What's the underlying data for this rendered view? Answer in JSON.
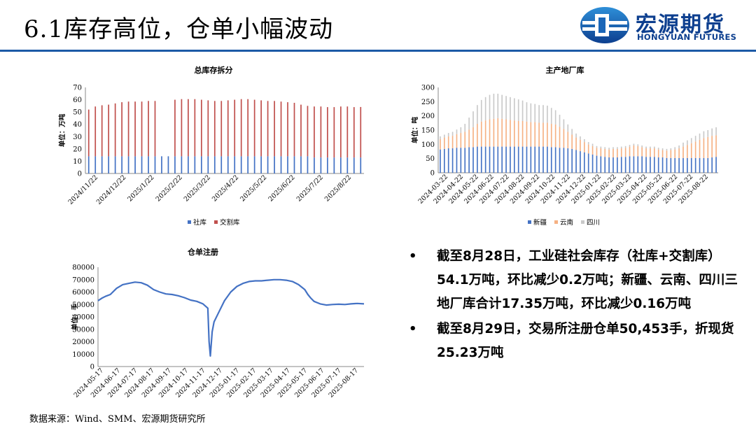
{
  "page_title": "6.1库存高位，仓单小幅波动",
  "logo": {
    "cn": "宏源期货",
    "en": "HONGYUAN FUTURES"
  },
  "bullets": [
    "截至8月28日，工业硅社会库存（社库+交割库）54.1万吨，环比减少0.2万吨；新疆、云南、四川三地厂库合计17.35万吨，环比减少0.16万吨",
    "截至8月29日，交易所注册仓单50,453手，折现货25.23万吨"
  ],
  "source_note": "数据来源：Wind、SMM、宏源期货研究所",
  "colors": {
    "blue": "#4472c4",
    "red": "#c0504d",
    "orange": "#f5b183",
    "gray": "#c9c9c9",
    "line": "#4472c4",
    "brand": "#1c5aa6"
  },
  "chart_data": [
    {
      "id": "total",
      "type": "bar",
      "stacked": true,
      "title": "总库存拆分",
      "ylabel": "单位：万吨",
      "ylim": [
        0,
        70
      ],
      "yticks": [
        0,
        10,
        20,
        30,
        40,
        50,
        60,
        70
      ],
      "xtick_labels": [
        "2024/11/22",
        "2024/12/22",
        "2025/1/22",
        "2025/2/22",
        "2025/3/22",
        "2025/4/22",
        "2025/5/22",
        "2025/6/22",
        "2025/7/22",
        "2025/8/22"
      ],
      "legend_position": "bottom",
      "series": [
        {
          "name": "社库",
          "color": "#4472c4",
          "values": [
            14,
            14,
            14,
            14,
            14,
            14,
            14,
            14,
            14,
            14,
            14,
            14,
            14,
            14,
            14,
            14,
            14,
            14,
            14,
            14,
            14,
            14,
            14,
            14,
            14,
            14,
            14,
            14,
            14,
            14,
            14,
            14,
            14,
            14,
            13,
            13,
            13,
            13,
            13,
            13,
            13,
            13
          ]
        },
        {
          "name": "交割库",
          "color": "#c0504d",
          "values": [
            38,
            40.5,
            41.5,
            42,
            43,
            44,
            44.5,
            44.5,
            44.5,
            45,
            45,
            0,
            0,
            46,
            46.5,
            46.5,
            46.5,
            46,
            45.5,
            45,
            45,
            45.5,
            46,
            46.5,
            46.5,
            46,
            45.5,
            45,
            45,
            44.5,
            44,
            43.5,
            42,
            41,
            41.5,
            41.5,
            41,
            41,
            41.5,
            41.5,
            41,
            41.1
          ]
        }
      ]
    },
    {
      "id": "factory",
      "type": "bar",
      "stacked": true,
      "title": "主产地厂库",
      "ylabel": "单位：吨",
      "ylim": [
        0,
        300
      ],
      "yticks": [
        0,
        50,
        100,
        150,
        200,
        250,
        300
      ],
      "xtick_labels": [
        "2024-03-22",
        "2024-04-22",
        "2024-05-22",
        "2024-06-22",
        "2024-07-22",
        "2024-08-22",
        "2024-09-22",
        "2024-10-22",
        "2024-11-22",
        "2024-12-22",
        "2025-01-22",
        "2025-02-22",
        "2025-03-22",
        "2025-04-22",
        "2025-05-22",
        "2025-06-22",
        "2025-07-22",
        "2025-08-22"
      ],
      "legend_position": "bottom",
      "series": [
        {
          "name": "新疆",
          "color": "#4472c4",
          "values": [
            82,
            84,
            86,
            86,
            88,
            88,
            88,
            90,
            90,
            92,
            92,
            92,
            92,
            92,
            92,
            92,
            92,
            92,
            92,
            92,
            92,
            92,
            92,
            92,
            92,
            92,
            92,
            90,
            90,
            88,
            88,
            86,
            84,
            80,
            76,
            72,
            68,
            64,
            60,
            58,
            56,
            54,
            54,
            54,
            56,
            56,
            58,
            58,
            58,
            58,
            56,
            56,
            56,
            54,
            54,
            52,
            52,
            52,
            52,
            52,
            52,
            52,
            52,
            52,
            52,
            52,
            54,
            56
          ]
        },
        {
          "name": "云南",
          "color": "#f5b183",
          "values": [
            36,
            40,
            42,
            44,
            48,
            52,
            56,
            62,
            70,
            80,
            88,
            92,
            96,
            98,
            100,
            98,
            96,
            94,
            92,
            90,
            90,
            88,
            86,
            86,
            84,
            84,
            84,
            82,
            80,
            74,
            66,
            58,
            50,
            44,
            40,
            36,
            32,
            30,
            28,
            28,
            28,
            28,
            30,
            30,
            30,
            32,
            34,
            38,
            36,
            32,
            30,
            30,
            30,
            28,
            26,
            26,
            28,
            30,
            34,
            40,
            46,
            52,
            58,
            64,
            70,
            74,
            76,
            76
          ]
        },
        {
          "name": "四川",
          "color": "#c9c9c9",
          "values": [
            10,
            10,
            12,
            14,
            16,
            20,
            28,
            42,
            56,
            66,
            76,
            82,
            86,
            88,
            86,
            84,
            82,
            80,
            78,
            76,
            72,
            68,
            66,
            64,
            62,
            62,
            60,
            56,
            50,
            42,
            34,
            26,
            20,
            14,
            12,
            10,
            8,
            8,
            6,
            6,
            6,
            6,
            6,
            6,
            6,
            6,
            6,
            6,
            6,
            6,
            6,
            6,
            6,
            6,
            6,
            6,
            6,
            8,
            10,
            14,
            16,
            18,
            20,
            22,
            24,
            24,
            26,
            28
          ]
        }
      ]
    },
    {
      "id": "warrant",
      "type": "line",
      "title": "仓单注册",
      "ylabel": "单位：手",
      "ylim": [
        0,
        80000
      ],
      "yticks": [
        0,
        10000,
        20000,
        30000,
        40000,
        50000,
        60000,
        70000,
        80000
      ],
      "xtick_labels": [
        "2024-05-17",
        "2024-06-17",
        "2024-07-17",
        "2024-08-17",
        "2024-09-17",
        "2024-10-17",
        "2024-11-17",
        "2024-12-17",
        "2025-01-17",
        "2025-02-17",
        "2025-03-17",
        "2025-04-17",
        "2025-05-17",
        "2025-06-17",
        "2025-07-17",
        "2025-08-17"
      ],
      "series": [
        {
          "name": "",
          "color": "#4472c4",
          "x": [
            0,
            6,
            12,
            20,
            30,
            40,
            50,
            60,
            70,
            80,
            90,
            100,
            110,
            120,
            130,
            140,
            150,
            160,
            170,
            178,
            180,
            182,
            185,
            188,
            195,
            205,
            215,
            225,
            235,
            245,
            255,
            265,
            275,
            285,
            295,
            305,
            315,
            325,
            335,
            340,
            345,
            350,
            355,
            360,
            370,
            380,
            390,
            400,
            410,
            420,
            431
          ],
          "y": [
            53000,
            55000,
            56500,
            58000,
            63000,
            66000,
            67000,
            68000,
            67500,
            65500,
            62000,
            60000,
            58500,
            58000,
            57000,
            55500,
            53500,
            52500,
            50500,
            47000,
            20000,
            8500,
            28000,
            36000,
            43000,
            53000,
            60000,
            64500,
            67000,
            68500,
            69000,
            69000,
            69500,
            70000,
            70000,
            69500,
            68500,
            66000,
            62000,
            58000,
            55000,
            52500,
            51500,
            50500,
            49500,
            50000,
            50200,
            50000,
            50500,
            50800,
            50453
          ]
        }
      ]
    }
  ]
}
